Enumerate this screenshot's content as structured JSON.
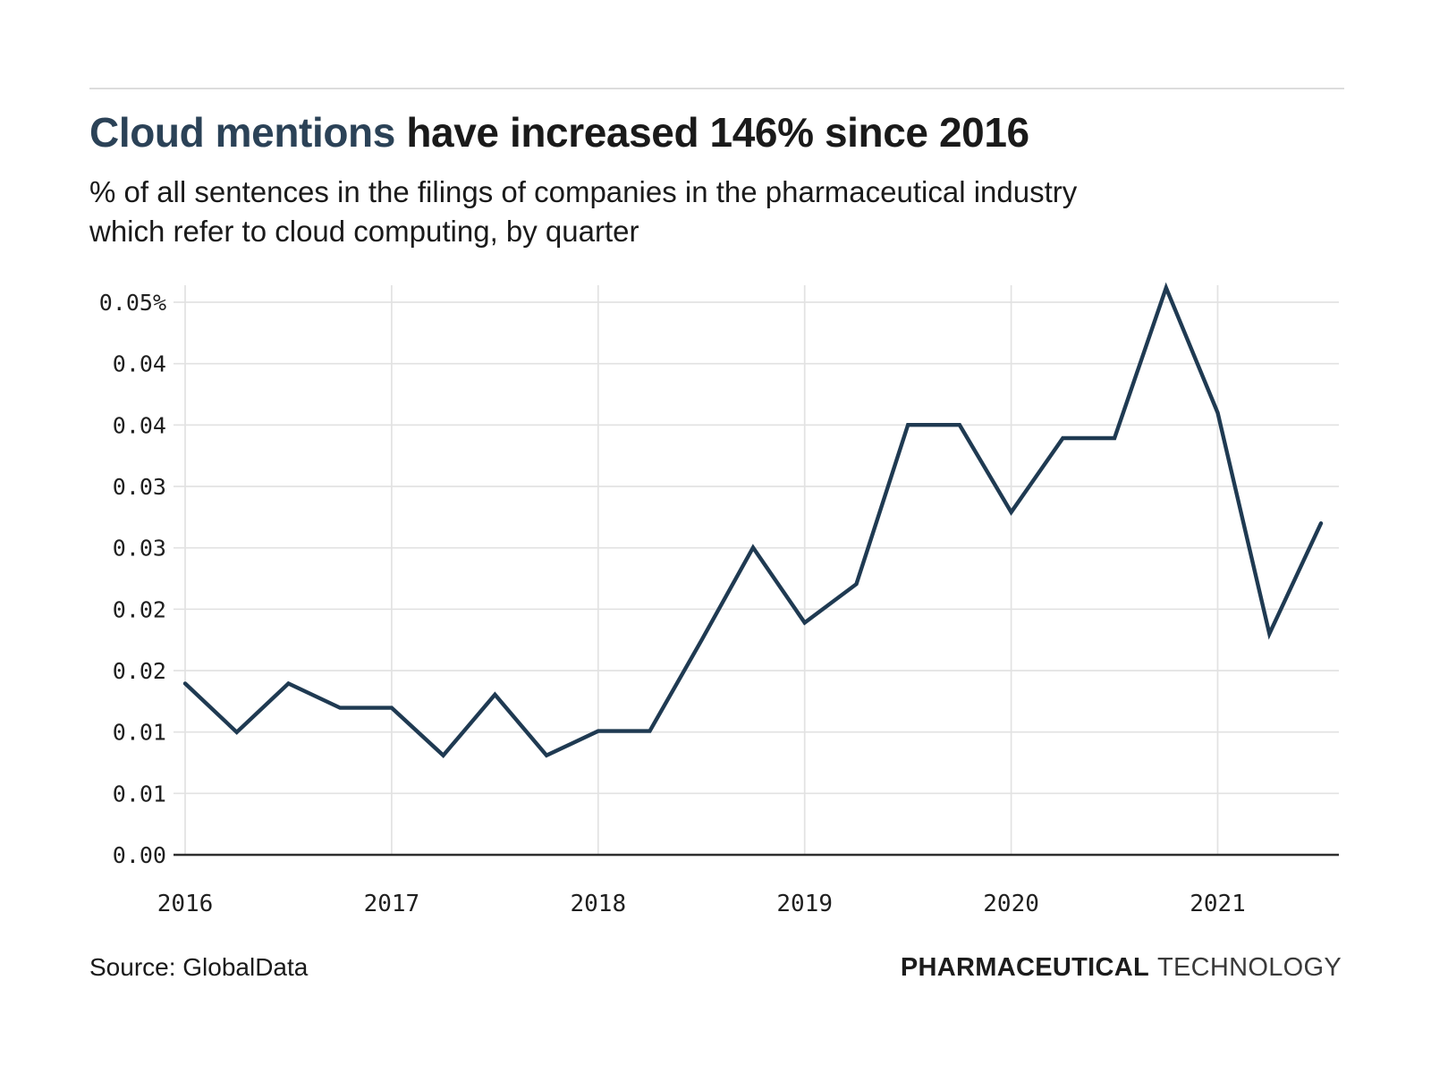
{
  "header": {
    "title_accent": "Cloud mentions",
    "title_rest": " have increased 146% since 2016",
    "subtitle_lines": [
      "% of all sentences in the filings of companies in the pharmaceutical industry",
      "which refer to cloud computing, by quarter"
    ]
  },
  "chart_data": {
    "type": "line",
    "title": "Cloud mentions have increased 146% since 2016",
    "subtitle": "% of all sentences in the filings of companies in the pharmaceutical industry which refer to cloud computing, by quarter",
    "unit": "% of all sentences",
    "grid": true,
    "legend": "none",
    "x": [
      "2016 Q1",
      "2016 Q2",
      "2016 Q3",
      "2016 Q4",
      "2017 Q1",
      "2017 Q2",
      "2017 Q3",
      "2017 Q4",
      "2018 Q1",
      "2018 Q2",
      "2018 Q3",
      "2018 Q4",
      "2019 Q1",
      "2019 Q2",
      "2019 Q3",
      "2019 Q4",
      "2020 Q1",
      "2020 Q2",
      "2020 Q3",
      "2020 Q4",
      "2021 Q1",
      "2021 Q2",
      "2021 Q3"
    ],
    "values": [
      0.0155,
      0.0111,
      0.0155,
      0.0133,
      0.0133,
      0.009,
      0.0145,
      0.009,
      0.0112,
      0.0112,
      0.0194,
      0.0278,
      0.021,
      0.0245,
      0.0389,
      0.0389,
      0.031,
      0.0377,
      0.0377,
      0.0513,
      0.04,
      0.02,
      0.03
    ],
    "series_name": "Cloud computing mentions",
    "x_axis": {
      "ticks": [
        {
          "index": 0,
          "label": "2016"
        },
        {
          "index": 4,
          "label": "2017"
        },
        {
          "index": 8,
          "label": "2018"
        },
        {
          "index": 12,
          "label": "2019"
        },
        {
          "index": 16,
          "label": "2020"
        },
        {
          "index": 20,
          "label": "2021"
        }
      ]
    },
    "y_axis": {
      "tick_max": 0.05,
      "range": [
        0,
        0.0516
      ],
      "ticks": [
        {
          "value": 0,
          "label": "0.00"
        },
        {
          "value": 0.005556,
          "label": "0.01"
        },
        {
          "value": 0.011111,
          "label": "0.01"
        },
        {
          "value": 0.016667,
          "label": "0.02"
        },
        {
          "value": 0.022222,
          "label": "0.02"
        },
        {
          "value": 0.027778,
          "label": "0.03"
        },
        {
          "value": 0.033333,
          "label": "0.03"
        },
        {
          "value": 0.038889,
          "label": "0.04"
        },
        {
          "value": 0.044444,
          "label": "0.04"
        },
        {
          "value": 0.05,
          "label": "0.05%"
        }
      ]
    },
    "colors": {
      "line": "#1f3a52",
      "grid": "#e2e2e2",
      "axis": "#2e2e2e",
      "tick_text": "#1f1f1f"
    }
  },
  "footer": {
    "source": "Source: GlobalData",
    "brand_bold": "PHARMACEUTICAL",
    "brand_light": "TECHNOLOGY"
  }
}
